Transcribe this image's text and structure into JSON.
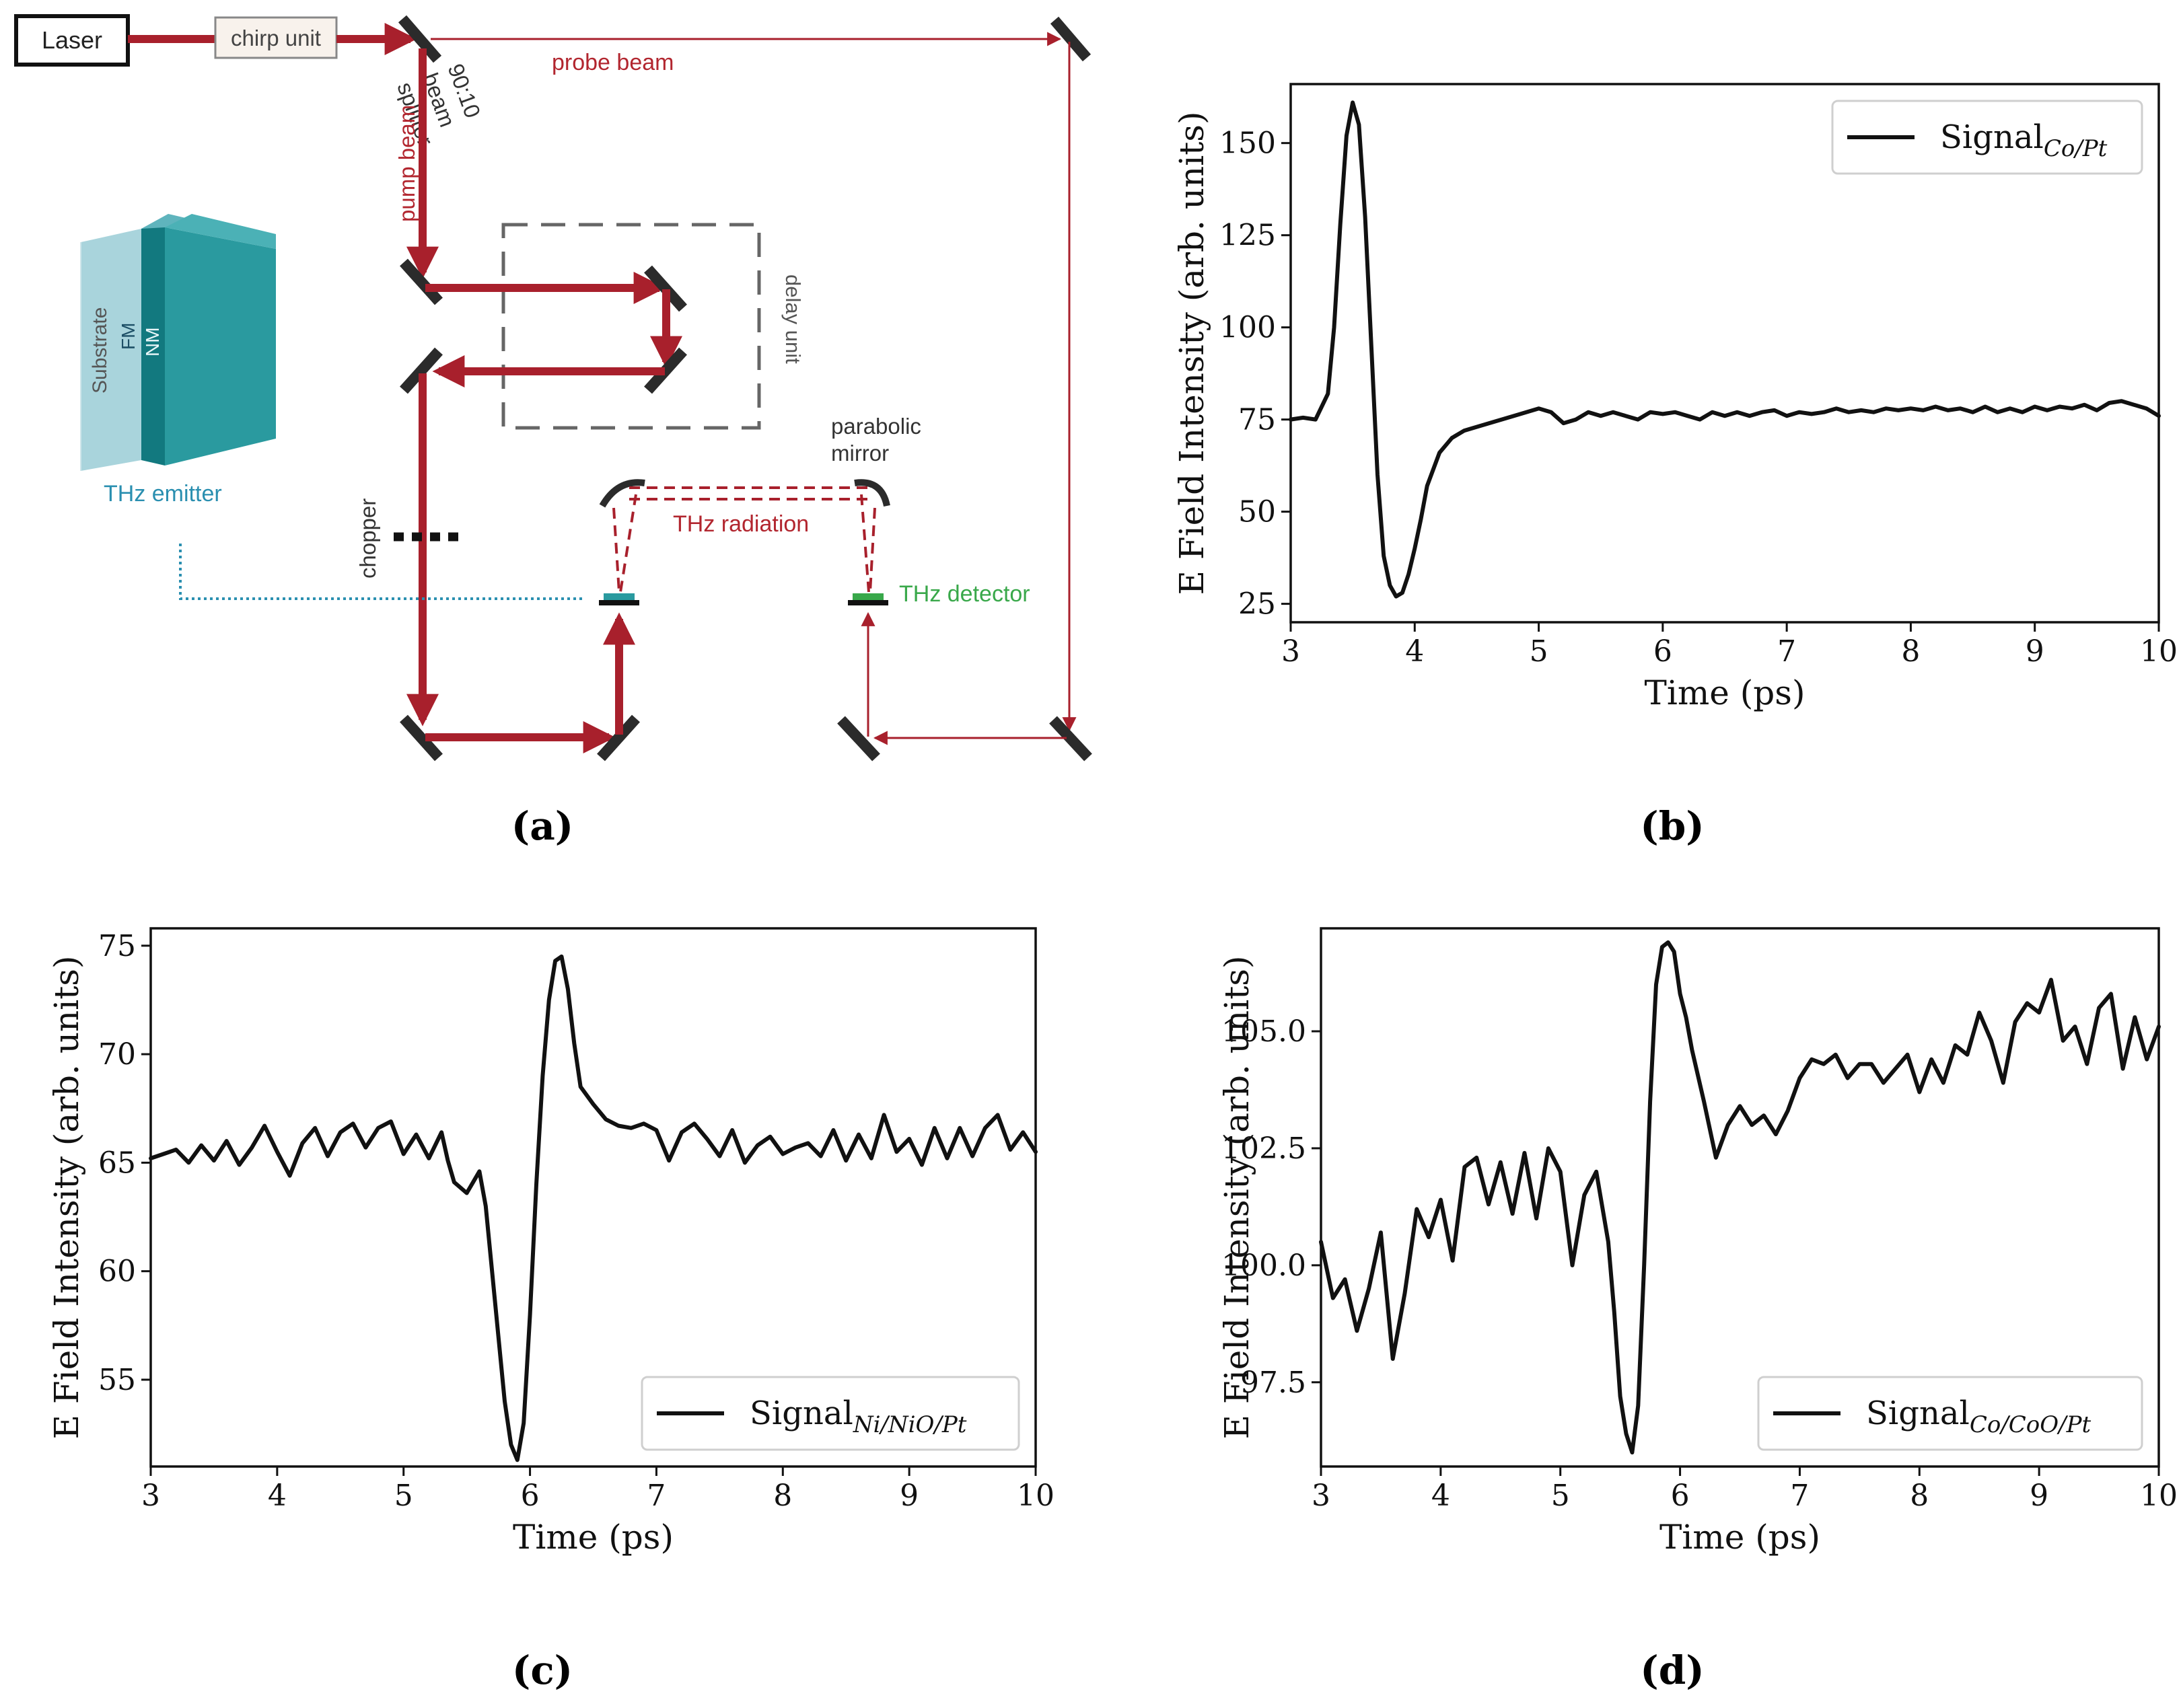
{
  "colors": {
    "beam": "#a8202c",
    "beam_light": "#c0404a",
    "mirror": "#2b2b2b",
    "emitter": "#2a9a9f",
    "emitter_light": "#9fd0d6",
    "emitter_dark": "#12797f",
    "emitter_label": "#2a8fb0",
    "detector_label": "#39a84a",
    "line": "#111111",
    "dashbox": "#666666"
  },
  "setup": {
    "laser_label": "Laser",
    "chirp_label": "chirp unit",
    "probe_beam_label": "probe beam",
    "splitter_label_lines": [
      "90:10",
      "beam",
      "splitter"
    ],
    "pump_beam_label": "pump beam",
    "delay_unit_label": "delay unit",
    "parabolic_mirror_lines": [
      "parabolic",
      "mirror"
    ],
    "thz_radiation_label": "THz radiation",
    "thz_detector_label": "THz detector",
    "chopper_label": "chopper",
    "thz_emitter_label": "THz emitter",
    "substrate_label": "Substrate",
    "fm_label": "FM",
    "nm_label": "NM"
  },
  "panel_labels": {
    "a": "(a)",
    "b": "(b)",
    "c": "(c)",
    "d": "(d)"
  },
  "chart_data": [
    {
      "id": "b",
      "type": "line",
      "title": "",
      "xlabel": "Time (ps)",
      "ylabel": "E Field Intensity (arb. units)",
      "xlim": [
        3,
        10
      ],
      "ylim": [
        20,
        166
      ],
      "xticks": [
        3,
        4,
        5,
        6,
        7,
        8,
        9,
        10
      ],
      "yticks": [
        25,
        50,
        75,
        100,
        125,
        150
      ],
      "ytick_labels": [
        "25",
        "50",
        "75",
        "100",
        "125",
        "150"
      ],
      "legend_position": "top-right",
      "series": [
        {
          "name": "Signal",
          "name_sub": "Co/Pt",
          "x": [
            3.0,
            3.1,
            3.2,
            3.3,
            3.35,
            3.4,
            3.45,
            3.5,
            3.55,
            3.6,
            3.65,
            3.7,
            3.75,
            3.8,
            3.85,
            3.9,
            3.95,
            4.0,
            4.05,
            4.1,
            4.2,
            4.3,
            4.4,
            4.6,
            4.8,
            5.0,
            5.1,
            5.2,
            5.3,
            5.4,
            5.5,
            5.6,
            5.7,
            5.8,
            5.9,
            6.0,
            6.1,
            6.2,
            6.3,
            6.4,
            6.5,
            6.6,
            6.7,
            6.8,
            6.9,
            7.0,
            7.1,
            7.2,
            7.3,
            7.4,
            7.5,
            7.6,
            7.7,
            7.8,
            7.9,
            8.0,
            8.1,
            8.2,
            8.3,
            8.4,
            8.5,
            8.6,
            8.7,
            8.8,
            8.9,
            9.0,
            9.1,
            9.2,
            9.3,
            9.4,
            9.5,
            9.6,
            9.7,
            9.8,
            9.9,
            10.0
          ],
          "y": [
            75,
            75.5,
            75,
            82,
            100,
            128,
            152,
            161,
            155,
            130,
            95,
            60,
            38,
            30,
            27,
            28,
            33,
            40,
            48,
            57,
            66,
            70,
            72,
            74,
            76,
            78,
            77,
            74,
            75,
            77,
            76,
            77,
            76,
            75,
            77,
            76.5,
            77,
            76,
            75,
            77,
            76,
            77,
            76,
            77,
            77.5,
            76,
            77,
            76.5,
            77,
            78,
            77,
            77.5,
            77,
            78,
            77.5,
            78,
            77.5,
            78.5,
            77.5,
            78,
            77,
            78.5,
            77,
            78,
            77,
            78.5,
            77.5,
            78.5,
            78,
            79,
            77.5,
            79.5,
            80,
            79,
            78,
            76
          ]
        }
      ]
    },
    {
      "id": "c",
      "type": "line",
      "title": "",
      "xlabel": "Time (ps)",
      "ylabel": "E Field Intensity (arb. units)",
      "xlim": [
        3,
        10
      ],
      "ylim": [
        51,
        75.8
      ],
      "xticks": [
        3,
        4,
        5,
        6,
        7,
        8,
        9,
        10
      ],
      "yticks": [
        55,
        60,
        65,
        70,
        75
      ],
      "ytick_labels": [
        "55",
        "60",
        "65",
        "70",
        "75"
      ],
      "legend_position": "bottom-right",
      "series": [
        {
          "name": "Signal",
          "name_sub": "Ni/NiO/Pt",
          "x": [
            3.0,
            3.1,
            3.2,
            3.3,
            3.4,
            3.5,
            3.6,
            3.7,
            3.8,
            3.9,
            4.0,
            4.1,
            4.2,
            4.3,
            4.4,
            4.5,
            4.6,
            4.7,
            4.8,
            4.9,
            5.0,
            5.1,
            5.2,
            5.3,
            5.35,
            5.4,
            5.5,
            5.6,
            5.65,
            5.7,
            5.75,
            5.8,
            5.85,
            5.9,
            5.95,
            6.0,
            6.05,
            6.1,
            6.15,
            6.2,
            6.25,
            6.3,
            6.35,
            6.4,
            6.5,
            6.6,
            6.7,
            6.8,
            6.9,
            7.0,
            7.1,
            7.2,
            7.3,
            7.4,
            7.5,
            7.6,
            7.7,
            7.8,
            7.9,
            8.0,
            8.1,
            8.2,
            8.3,
            8.4,
            8.5,
            8.6,
            8.7,
            8.8,
            8.9,
            9.0,
            9.1,
            9.2,
            9.3,
            9.4,
            9.5,
            9.6,
            9.7,
            9.8,
            9.9,
            10.0
          ],
          "y": [
            65.2,
            65.4,
            65.6,
            65.0,
            65.8,
            65.1,
            66.0,
            64.9,
            65.7,
            66.7,
            65.5,
            64.4,
            65.9,
            66.6,
            65.3,
            66.4,
            66.8,
            65.7,
            66.6,
            66.9,
            65.4,
            66.3,
            65.2,
            66.4,
            65.1,
            64.1,
            63.6,
            64.6,
            63.0,
            60.0,
            57.0,
            54.0,
            52.0,
            51.3,
            53.0,
            58.0,
            64.0,
            69.0,
            72.5,
            74.3,
            74.5,
            73.0,
            70.5,
            68.5,
            67.7,
            67.0,
            66.7,
            66.6,
            66.8,
            66.5,
            65.1,
            66.4,
            66.8,
            66.1,
            65.3,
            66.5,
            65.0,
            65.8,
            66.2,
            65.4,
            65.7,
            65.9,
            65.3,
            66.5,
            65.1,
            66.3,
            65.2,
            67.2,
            65.5,
            66.1,
            64.9,
            66.6,
            65.2,
            66.6,
            65.3,
            66.6,
            67.2,
            65.6,
            66.4,
            65.5
          ]
        }
      ]
    },
    {
      "id": "d",
      "type": "line",
      "title": "",
      "xlabel": "Time (ps)",
      "ylabel": "E Field Intensity (arb. units)",
      "xlim": [
        3,
        10
      ],
      "ylim": [
        95.7,
        107.2
      ],
      "xticks": [
        3,
        4,
        5,
        6,
        7,
        8,
        9,
        10
      ],
      "yticks": [
        97.5,
        100.0,
        102.5,
        105.0
      ],
      "ytick_labels": [
        "97.5",
        "100.0",
        "102.5",
        "105.0"
      ],
      "legend_position": "bottom-right",
      "series": [
        {
          "name": "Signal",
          "name_sub": "Co/CoO/Pt",
          "x": [
            3.0,
            3.1,
            3.2,
            3.3,
            3.4,
            3.5,
            3.6,
            3.7,
            3.8,
            3.9,
            4.0,
            4.1,
            4.2,
            4.3,
            4.4,
            4.5,
            4.6,
            4.7,
            4.8,
            4.9,
            5.0,
            5.1,
            5.2,
            5.3,
            5.4,
            5.45,
            5.5,
            5.55,
            5.6,
            5.65,
            5.7,
            5.75,
            5.8,
            5.85,
            5.9,
            5.95,
            6.0,
            6.05,
            6.1,
            6.2,
            6.3,
            6.4,
            6.5,
            6.6,
            6.7,
            6.8,
            6.9,
            7.0,
            7.1,
            7.2,
            7.3,
            7.4,
            7.5,
            7.6,
            7.7,
            7.8,
            7.9,
            8.0,
            8.1,
            8.2,
            8.3,
            8.4,
            8.5,
            8.6,
            8.7,
            8.8,
            8.9,
            9.0,
            9.1,
            9.2,
            9.3,
            9.4,
            9.5,
            9.6,
            9.7,
            9.8,
            9.9,
            10.0
          ],
          "y": [
            100.5,
            99.3,
            99.7,
            98.6,
            99.5,
            100.7,
            98.0,
            99.4,
            101.2,
            100.6,
            101.4,
            100.1,
            102.1,
            102.3,
            101.3,
            102.2,
            101.1,
            102.4,
            101.0,
            102.5,
            102.0,
            100.0,
            101.5,
            102.0,
            100.5,
            99.0,
            97.2,
            96.4,
            96.0,
            97.0,
            100.0,
            103.5,
            106.0,
            106.8,
            106.9,
            106.7,
            105.8,
            105.3,
            104.6,
            103.5,
            102.3,
            103.0,
            103.4,
            103.0,
            103.2,
            102.8,
            103.3,
            104.0,
            104.4,
            104.3,
            104.5,
            104.0,
            104.3,
            104.3,
            103.9,
            104.2,
            104.5,
            103.7,
            104.4,
            103.9,
            104.7,
            104.5,
            105.4,
            104.8,
            103.9,
            105.2,
            105.6,
            105.4,
            106.1,
            104.8,
            105.1,
            104.3,
            105.5,
            105.8,
            104.2,
            105.3,
            104.4,
            105.1
          ]
        }
      ]
    }
  ]
}
